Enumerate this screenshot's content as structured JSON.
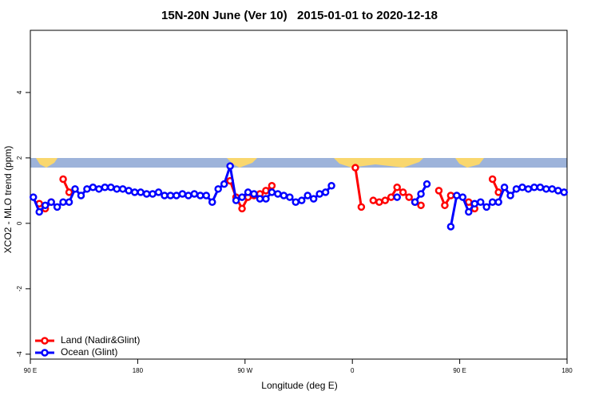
{
  "chart_data": {
    "type": "line",
    "title": "15N-20N June (Ver 10)   2015-01-01 to 2020-12-18",
    "x_label": "Longitude (deg E)",
    "y_label": "XCO2 - MLO trend (ppm)",
    "x": [
      92.5,
      97.5,
      102.5,
      107.5,
      112.5,
      117.5,
      122.5,
      127.5,
      132.5,
      137.5,
      142.5,
      147.5,
      152.5,
      157.5,
      162.5,
      167.5,
      172.5,
      177.5,
      182.5,
      187.5,
      192.5,
      197.5,
      202.5,
      207.5,
      212.5,
      217.5,
      222.5,
      227.5,
      232.5,
      237.5,
      242.5,
      247.5,
      252.5,
      257.5,
      262.5,
      267.5,
      272.5,
      277.5,
      282.5,
      287.5,
      292.5,
      297.5,
      302.5,
      307.5,
      312.5,
      317.5,
      322.5,
      327.5,
      332.5,
      337.5,
      342.5,
      347.5,
      352.5,
      357.5,
      362.5,
      367.5,
      372.5,
      377.5,
      382.5,
      387.5,
      392.5,
      397.5,
      402.5,
      407.5,
      412.5,
      417.5,
      422.5,
      427.5,
      432.5,
      437.5,
      442.5,
      447.5,
      452.5,
      457.5,
      462.5,
      467.5,
      472.5,
      477.5,
      482.5,
      487.5,
      492.5,
      497.5,
      502.5,
      507.5,
      512.5,
      517.5,
      522.5,
      527.5,
      532.5,
      537.5
    ],
    "series": [
      {
        "name": "Land (Nadir&Glint)",
        "color": "#ff0000",
        "values": [
          null,
          0.6,
          0.45,
          0.65,
          null,
          1.35,
          0.95,
          null,
          null,
          null,
          null,
          null,
          null,
          null,
          null,
          null,
          null,
          null,
          null,
          null,
          null,
          null,
          null,
          null,
          null,
          null,
          null,
          null,
          null,
          null,
          null,
          null,
          null,
          1.3,
          0.8,
          0.45,
          0.8,
          0.85,
          0.9,
          1.0,
          1.15,
          null,
          null,
          null,
          null,
          null,
          null,
          null,
          null,
          null,
          null,
          null,
          null,
          null,
          1.7,
          0.5,
          null,
          0.7,
          0.65,
          0.7,
          0.8,
          1.1,
          0.95,
          0.8,
          0.65,
          0.55,
          null,
          null,
          1.0,
          0.55,
          0.85,
          null,
          null,
          0.65,
          0.45,
          null,
          null,
          1.35,
          0.95,
          null,
          null,
          null,
          null,
          null,
          null,
          null,
          null,
          null,
          null,
          null
        ]
      },
      {
        "name": "Ocean (Glint)",
        "color": "#0000ff",
        "values": [
          0.8,
          0.35,
          0.55,
          0.65,
          0.5,
          0.65,
          0.65,
          1.05,
          0.85,
          1.05,
          1.1,
          1.05,
          1.1,
          1.1,
          1.05,
          1.05,
          1.0,
          0.95,
          0.95,
          0.9,
          0.9,
          0.95,
          0.85,
          0.85,
          0.85,
          0.9,
          0.85,
          0.9,
          0.85,
          0.85,
          0.65,
          1.05,
          1.2,
          1.75,
          0.7,
          0.8,
          0.95,
          0.9,
          0.75,
          0.75,
          0.95,
          0.9,
          0.85,
          0.8,
          0.65,
          0.7,
          0.85,
          0.75,
          0.9,
          0.95,
          1.15,
          null,
          null,
          null,
          null,
          null,
          null,
          null,
          null,
          null,
          null,
          0.8,
          null,
          null,
          0.65,
          0.9,
          1.2,
          null,
          null,
          null,
          -0.1,
          0.85,
          0.8,
          0.35,
          0.6,
          0.65,
          0.5,
          0.65,
          0.65,
          1.1,
          0.85,
          1.05,
          1.1,
          1.05,
          1.1,
          1.1,
          1.05,
          1.05,
          1.0,
          0.95
        ]
      }
    ],
    "xlim": [
      90,
      540
    ],
    "ylim": [
      -4.15,
      5.9
    ],
    "xticks": [
      {
        "value": 90,
        "label": "90 E"
      },
      180,
      {
        "value": 270,
        "label": "90 W"
      },
      {
        "value": 360,
        "label": "0"
      },
      {
        "value": 450,
        "label": "90 E"
      },
      {
        "value": 540,
        "label": "180"
      }
    ],
    "yticks": [
      -4,
      -2,
      0,
      2,
      4
    ],
    "legend": "bottom-left"
  }
}
